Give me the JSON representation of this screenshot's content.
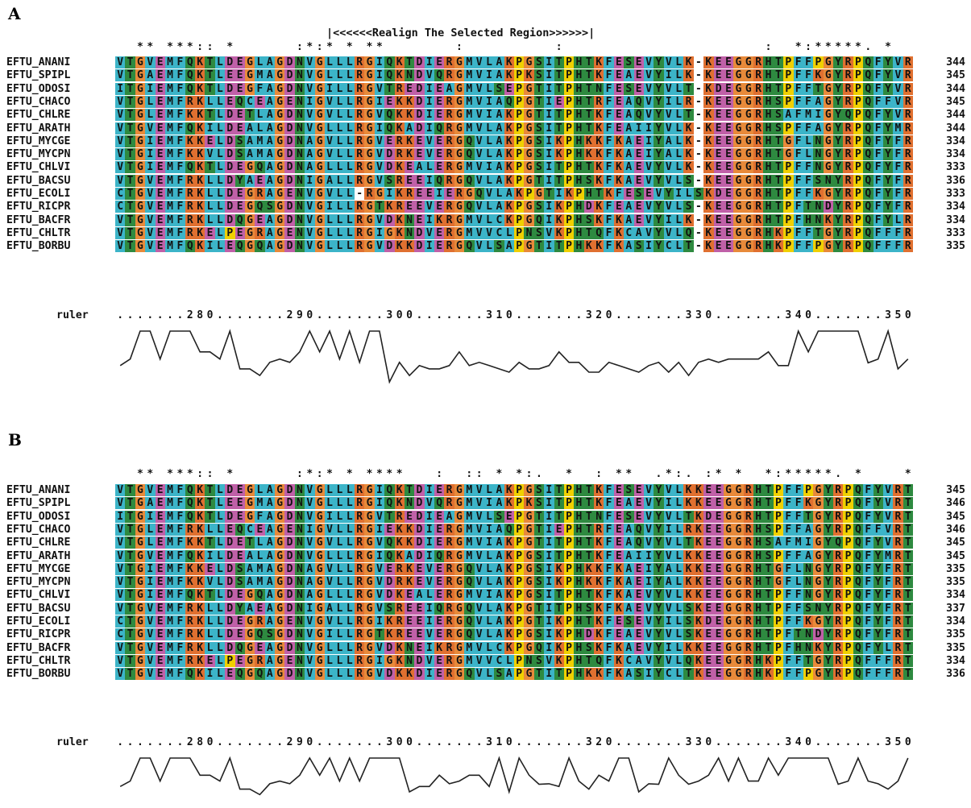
{
  "panels": [
    {
      "label": "A",
      "realign_banner": "|<<<<<<Realign The Selected Region>>>>>>|",
      "conservation": "  ** ***:: *      :*:* * **       :         :                    :  *:*****. *    *:***:.*",
      "sequences": [
        {
          "name": "EFTU_ANANI",
          "seq": "VTGVEMFQKTLDEGLAGDNVGLLLRGIQKTDIERGMVLAKPGSITPHTKFESEVYVLK-KEEGGRHTPFFPGYRPQFYVR",
          "end": "344"
        },
        {
          "name": "EFTU_SPIPL",
          "seq": "VTGAEMFQKTLEEGMAGDNVGLLLRGIQKNDVQRGMVIAKPKSITPHTKFEAEVYILK-KEEGGRHTPFFKGYRPQFYVR",
          "end": "345"
        },
        {
          "name": "EFTU_ODOSI",
          "seq": "ITGIEMFQKTLDEGFAGDNVGILLRGVTREDIEAGMVLSEPGTITPHTNFESEVYVLT-KDEGGRHTPFFTGYRPQFYVR",
          "end": "344"
        },
        {
          "name": "EFTU_CHACO",
          "seq": "VTGLEMFRKLLEQCEAGENIGVLLRGIEKKDIERGMVIAQPGTIEPHTRFEAQVYILR-KEEGGRHSPFFAGYRPQFFVR",
          "end": "345"
        },
        {
          "name": "EFTU_CHLRE",
          "seq": "VTGLEMFKKTLDETLAGDNVGVLLRGVQKKDIERGMVIAKPGTITPHTKFEAQVYVLT-KEEGGRHSAFMIGYQPQFYVR",
          "end": "344"
        },
        {
          "name": "EFTU_ARATH",
          "seq": "VTGVEMFQKILDEALAGDNVGLLLRGIQKADIQRGMVLAKPGSITPHTKFEAIIYVLK-KEEGGRHSPFFAGYRPQFYMR",
          "end": "344"
        },
        {
          "name": "EFTU_MYCGE",
          "seq": "VTGIEMFKKELDSAMAGDNAGVLLRGVERKEVERGQVLAKPGSIKPHKKFKAEIYALK-KEEGGRHTGFLNGYRPQFYFR",
          "end": "334"
        },
        {
          "name": "EFTU_MYCPN",
          "seq": "VTGIEMFKKVLDSAMAGDNAGVLLRGVDRKEVERGQVLAKPGSIKPHKKFKAEIYALK-KEEGGRHTGFLNGYRPQFYFR",
          "end": "334"
        },
        {
          "name": "EFTU_CHLVI",
          "seq": "VTGIEMFQKTLDEGQAGDNAGLLLRGVDKEALERGMVIAKPGSITPHTKFKAEVYVLK-KEEGGRHTPFFNGYRPQFYFR",
          "end": "333"
        },
        {
          "name": "EFTU_BACSU",
          "seq": "VTGVEMFRKLLDYAEAGDNIGALLRGVSREEIQRGQVLAKPGTITPHSKFKAEVYVLS-KEEGGRHTPFFSNYRPQFYFR",
          "end": "336"
        },
        {
          "name": "EFTU_ECOLI",
          "seq": "CTGVEMFRKLLDEGRAGENVGVLL-RGIKREEIERGQVLAKPGTIKPHTKFESEVYILSKDEGGRHTPFFKGYRPQFYFR",
          "end": "333"
        },
        {
          "name": "EFTU_RICPR",
          "seq": "CTGVEMFRKLLDEGQSGDNVGILLRGTKREEVERGQVLAKPGSIKPHDKFEAEVYVLS-KEEGGRHTPFTNDYRPQFYFR",
          "end": "334"
        },
        {
          "name": "EFTU_BACFR",
          "seq": "VTGVEMFRKLLDQGEAGDNVGLLLRGVDKNEIKRGMVLCKPGQIKPHSKFKAEVYILK-KEEGGRHTPFHNKYRPQFYLR",
          "end": "334"
        },
        {
          "name": "EFTU_CHLTR",
          "seq": "VTGVEMFRKELPEGRAGENVGLLLRGIGKNDVERGMVVCLPNSVKPHTQFKCAVYVLQ-KEEGGRHKPFFTGYRPQFFFR",
          "end": "333"
        },
        {
          "name": "EFTU_BORBU",
          "seq": "VTGVEMFQKILEQGQAGDNVGLLLRGVDKKDIERGQVLSAPGTITPHKKFKASIYCLT-KEEGGRHKPFFPGYRPQFFFR",
          "end": "335"
        }
      ],
      "ruler_label": "ruler",
      "ruler_dots": ".......280.......290.......300.......310.......320.......330.......340.......350",
      "ruler_ticks": [
        "280",
        "290",
        "300",
        "310",
        "320",
        "330",
        "340",
        "350"
      ]
    },
    {
      "label": "B",
      "conservation": "  ** ***:: *      :*:* * ****   :  :: * *:.  *  : **  .*:. :* *  *:*****. *    *:***:.**",
      "sequences": [
        {
          "name": "EFTU_ANANI",
          "seq": "VTGVEMFQKTLDEGLAGDNVGLLLRGIQKTDIERGMVLAKPGSITPHTKFESEVYVLKKEEGGRHTPFFPGYRPQFYVRT",
          "end": "345"
        },
        {
          "name": "EFTU_SPIPL",
          "seq": "VTGAEMFQKTLEEGMAGDNVGLLLRGIQKNDVQRGMVIAKPKSITPHTKFEAEVYILKKEEGGRHTPFFKGYRPQFYVRT",
          "end": "346"
        },
        {
          "name": "EFTU_ODOSI",
          "seq": "ITGIEMFQKTLDEGFAGDNVGILLRGVTREDIEAGMVLSEPGTITPHTNFESEVYVLTKDEGGRHTPFFTGYRPQFYVRT",
          "end": "345"
        },
        {
          "name": "EFTU_CHACO",
          "seq": "VTGLEMFRKLLEQCEAGENIGVLLRGIEKKDIERGMVIAQPGTIEPHTRFEAQVYILRKEEGGRHSPFFAGYRPQFFVRT",
          "end": "346"
        },
        {
          "name": "EFTU_CHLRE",
          "seq": "VTGLEMFKKTLDETLAGDNVGVLLRGVQKKDIERGMVIAKPGTITPHTKFEAQVYVLTKEEGGRHSAFMIGYQPQFYVRT",
          "end": "345"
        },
        {
          "name": "EFTU_ARATH",
          "seq": "VTGVEMFQKILDEALAGDNVGLLLRGIQKADIQRGMVLAKPGSITPHTKFEAIIYVLKKEEGGRHSPFFAGYRPQFYMRT",
          "end": "345"
        },
        {
          "name": "EFTU_MYCGE",
          "seq": "VTGIEMFKKELDSAMAGDNAGVLLRGVERKEVERGQVLAKPGSIKPHKKFKAEIYALKKEEGGRHTGFLNGYRPQFYFRT",
          "end": "335"
        },
        {
          "name": "EFTU_MYCPN",
          "seq": "VTGIEMFKKVLDSAMAGDNAGVLLRGVDRKEVERGQVLAKPGSIKPHKKFKAEIYALKKEEGGRHTGFLNGYRPQFYFRT",
          "end": "335"
        },
        {
          "name": "EFTU_CHLVI",
          "seq": "VTGIEMFQKTLDEGQAGDNAGLLLRGVDKEALERGMVIAKPGSITPHTKFKAEVYVLKKEEGGRHTPFFNGYRPQFYFRT",
          "end": "334"
        },
        {
          "name": "EFTU_BACSU",
          "seq": "VTGVEMFRKLLDYAEAGDNIGALLRGVSREEIQRGQVLAKPGTITPHSKFKAEVYVLSKEEGGRHTPFFSNYRPQFYFRT",
          "end": "337"
        },
        {
          "name": "EFTU_ECOLI",
          "seq": "CTGVEMFRKLLDEGRAGENVGVLLRGIKREEIERGQVLAKPGTIKPHTKFESEVYILSKDEGGRHTPFFKGYRPQFYFRT",
          "end": "334"
        },
        {
          "name": "EFTU_RICPR",
          "seq": "CTGVEMFRKLLDEGQSGDNVGILLRGTKREEVERGQVLAKPGSIKPHDKFEAEVYVLSKEEGGRHTPFTNDYRPQFYFRT",
          "end": "335"
        },
        {
          "name": "EFTU_BACFR",
          "seq": "VTGVEMFRKLLDQGEAGDNVGLLLRGVDKNEIKRGMVLCKPGQIKPHSKFKAEVYILKKEEGGRHTPFHNKYRPQFYLRT",
          "end": "335"
        },
        {
          "name": "EFTU_CHLTR",
          "seq": "VTGVEMFRKELPEGRAGENVGLLLRGIGKNDVERGMVVCLPNSVKPHTQFKCAVYVLQKEEGGRHKPFFTGYRPQFFFRT",
          "end": "334"
        },
        {
          "name": "EFTU_BORBU",
          "seq": "VTGVEMFQKILEQGQAGDNVGLLLRGVDKKDIERGQVLSAPGTITPHKKFKASIYCLTKEEGGRHKPFFPGYRPQFFFRT",
          "end": "336"
        }
      ],
      "ruler_label": "ruler",
      "ruler_dots": ".......280.......290.......300.......310.......320.......330.......340.......350",
      "ruler_ticks": [
        "280",
        "290",
        "300",
        "310",
        "320",
        "330",
        "340",
        "350"
      ]
    }
  ],
  "residue_colors": {
    "hydrophobic": "#3cb4c8",
    "acidic": "#c060a8",
    "basic": "#e07030",
    "glycine": "#e88a3a",
    "proline": "#f0d000",
    "polar": "#2e8a40",
    "gap": "#ffffff"
  }
}
